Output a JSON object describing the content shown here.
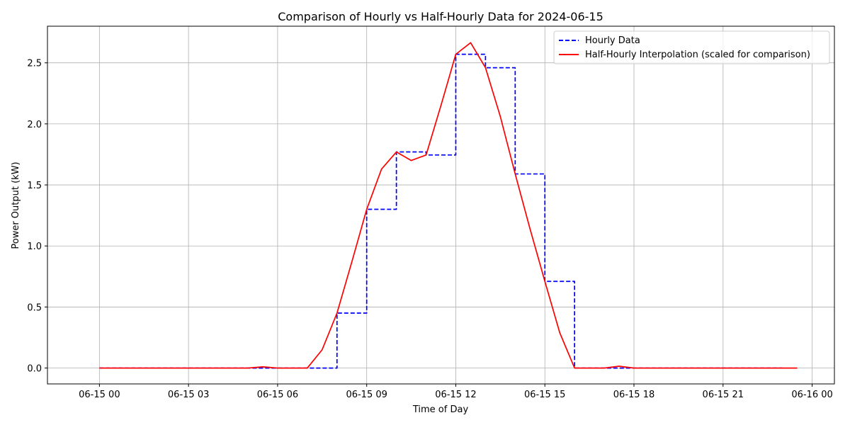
{
  "chart_data": {
    "type": "line",
    "title": "Comparison of Hourly vs Half-Hourly Data for 2024-06-15",
    "xlabel": "Time of Day",
    "ylabel": "Power Output (kW)",
    "x_unit": "hours",
    "xlim": [
      -1.75,
      24.75
    ],
    "ylim": [
      -0.13,
      2.8
    ],
    "x_ticks": [
      {
        "value": 0,
        "label": "06-15 00"
      },
      {
        "value": 3,
        "label": "06-15 03"
      },
      {
        "value": 6,
        "label": "06-15 06"
      },
      {
        "value": 9,
        "label": "06-15 09"
      },
      {
        "value": 12,
        "label": "06-15 12"
      },
      {
        "value": 15,
        "label": "06-15 15"
      },
      {
        "value": 18,
        "label": "06-15 18"
      },
      {
        "value": 21,
        "label": "06-15 21"
      },
      {
        "value": 24,
        "label": "06-16 00"
      }
    ],
    "y_ticks": [
      {
        "value": 0.0,
        "label": "0.0"
      },
      {
        "value": 0.5,
        "label": "0.5"
      },
      {
        "value": 1.0,
        "label": "1.0"
      },
      {
        "value": 1.5,
        "label": "1.5"
      },
      {
        "value": 2.0,
        "label": "2.0"
      },
      {
        "value": 2.5,
        "label": "2.5"
      }
    ],
    "grid": true,
    "legend_position": "top-right",
    "series": [
      {
        "name": "Hourly Data",
        "style": "step-dashed",
        "color": "#0000ff",
        "x": [
          0,
          1,
          2,
          3,
          4,
          5,
          6,
          7,
          8,
          9,
          10,
          11,
          12,
          13,
          14,
          15,
          16,
          17,
          18,
          19,
          20,
          21,
          22,
          23
        ],
        "y": [
          0,
          0,
          0,
          0,
          0,
          0,
          0,
          0,
          0.45,
          1.3,
          1.77,
          1.745,
          2.57,
          2.46,
          1.59,
          0.71,
          0,
          0,
          0,
          0,
          0,
          0,
          0,
          0
        ]
      },
      {
        "name": "Half-Hourly Interpolation (scaled for comparison)",
        "style": "line",
        "color": "#ff0000",
        "x": [
          0,
          0.5,
          1,
          1.5,
          2,
          2.5,
          3,
          3.5,
          4,
          4.5,
          5,
          5.5,
          6,
          6.5,
          7,
          7.5,
          8,
          8.5,
          9,
          9.5,
          10,
          10.5,
          11,
          11.5,
          12,
          12.5,
          13,
          13.5,
          14,
          14.5,
          15,
          15.5,
          16,
          16.5,
          17,
          17.5,
          18,
          18.5,
          19,
          19.5,
          20,
          20.5,
          21,
          21.5,
          22,
          22.5,
          23,
          23.5
        ],
        "y": [
          0,
          0,
          0,
          0,
          0,
          0,
          0,
          0,
          0,
          0,
          0,
          0.01,
          0,
          0,
          0,
          0.15,
          0.45,
          0.87,
          1.3,
          1.63,
          1.77,
          1.7,
          1.745,
          2.15,
          2.57,
          2.665,
          2.46,
          2.06,
          1.59,
          1.14,
          0.71,
          0.29,
          0,
          0,
          0,
          0.015,
          0,
          0,
          0,
          0,
          0,
          0,
          0,
          0,
          0,
          0,
          0,
          0
        ]
      }
    ]
  }
}
